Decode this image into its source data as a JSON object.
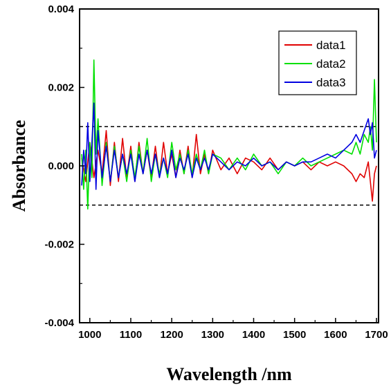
{
  "chart_data": {
    "type": "line",
    "title": "",
    "xlabel": "Wavelength /nm",
    "ylabel": "Absorbance",
    "xlim": [
      975,
      1705
    ],
    "ylim": [
      -0.004,
      0.004
    ],
    "x_ticks": [
      1000,
      1100,
      1200,
      1300,
      1400,
      1500,
      1600,
      1700
    ],
    "x_tick_labels": [
      "1000",
      "1100",
      "1200",
      "1300",
      "1400",
      "1500",
      "1600",
      "1700"
    ],
    "y_ticks": [
      -0.004,
      -0.002,
      0.0,
      0.002,
      0.004
    ],
    "y_tick_labels": [
      "-0.004",
      "-0.002",
      "0.000",
      "0.002",
      "0.004"
    ],
    "grid": false,
    "legend": "top-right",
    "reference_lines": [
      0.001,
      -0.001
    ],
    "series": [
      {
        "name": "data1",
        "color": "#e00000",
        "x": [
          980,
          990,
          1000,
          1010,
          1020,
          1030,
          1040,
          1050,
          1060,
          1070,
          1080,
          1090,
          1100,
          1110,
          1120,
          1130,
          1140,
          1150,
          1160,
          1170,
          1180,
          1190,
          1200,
          1210,
          1220,
          1230,
          1240,
          1250,
          1260,
          1270,
          1280,
          1290,
          1300,
          1320,
          1340,
          1360,
          1380,
          1400,
          1420,
          1440,
          1460,
          1480,
          1500,
          1520,
          1540,
          1560,
          1580,
          1600,
          1620,
          1640,
          1650,
          1660,
          1670,
          1680,
          1690,
          1695,
          1700
        ],
        "values": [
          0.0002,
          -0.0004,
          0.0006,
          -0.0003,
          0.0004,
          -0.0002,
          0.0009,
          -0.0005,
          0.0006,
          -0.0004,
          0.0007,
          -0.0003,
          0.0005,
          -0.0004,
          0.0006,
          -0.0002,
          0.0004,
          -0.0003,
          0.0005,
          -0.0003,
          0.0006,
          -0.0002,
          0.0003,
          -0.0003,
          0.0004,
          -0.0002,
          0.0005,
          -0.0003,
          0.0008,
          -0.0002,
          0.0003,
          -0.0002,
          0.0004,
          -0.0001,
          0.0002,
          -0.0002,
          0.0002,
          0.0001,
          -0.0001,
          0.0002,
          -0.0001,
          0.0001,
          0.0,
          0.0001,
          -0.0001,
          0.0001,
          0.0,
          0.0001,
          0.0,
          -0.0002,
          -0.0004,
          -0.0002,
          -0.0003,
          0.0001,
          -0.0009,
          -0.0002,
          0.0
        ]
      },
      {
        "name": "data2",
        "color": "#00e000",
        "x": [
          980,
          985,
          990,
          995,
          1000,
          1005,
          1010,
          1015,
          1020,
          1030,
          1040,
          1050,
          1060,
          1070,
          1080,
          1090,
          1100,
          1110,
          1120,
          1130,
          1140,
          1150,
          1160,
          1170,
          1180,
          1190,
          1200,
          1210,
          1220,
          1230,
          1240,
          1250,
          1260,
          1270,
          1280,
          1290,
          1300,
          1320,
          1340,
          1360,
          1380,
          1400,
          1420,
          1440,
          1460,
          1480,
          1500,
          1520,
          1540,
          1560,
          1580,
          1600,
          1620,
          1640,
          1650,
          1660,
          1670,
          1680,
          1685,
          1690,
          1695,
          1700
        ],
        "values": [
          0.0003,
          -0.0006,
          0.0004,
          -0.0011,
          0.0006,
          -0.0003,
          0.0027,
          0.0003,
          0.0012,
          -0.0005,
          0.0006,
          -0.0004,
          0.0005,
          -0.0003,
          0.0003,
          -0.0004,
          0.0004,
          -0.0003,
          0.0005,
          -0.0002,
          0.0007,
          -0.0004,
          0.0003,
          -0.0002,
          0.0002,
          -0.0003,
          0.0006,
          -0.0001,
          0.0003,
          -0.0002,
          0.0004,
          -0.0002,
          0.0003,
          -0.0001,
          0.0004,
          -0.0002,
          0.0003,
          0.0002,
          -0.0001,
          0.0002,
          -0.0001,
          0.0003,
          0.0,
          0.0001,
          -0.0002,
          0.0001,
          0.0,
          0.0002,
          0.0,
          0.0001,
          0.0002,
          0.0003,
          0.0004,
          0.0003,
          0.0006,
          0.0003,
          0.0008,
          0.0006,
          0.001,
          0.0004,
          0.0022,
          0.0006
        ]
      },
      {
        "name": "data3",
        "color": "#0000e0",
        "x": [
          980,
          985,
          990,
          995,
          1000,
          1005,
          1010,
          1015,
          1020,
          1030,
          1040,
          1050,
          1060,
          1070,
          1080,
          1090,
          1100,
          1110,
          1120,
          1130,
          1140,
          1150,
          1160,
          1170,
          1180,
          1190,
          1200,
          1210,
          1220,
          1230,
          1240,
          1250,
          1260,
          1270,
          1280,
          1290,
          1300,
          1320,
          1340,
          1360,
          1380,
          1400,
          1420,
          1440,
          1460,
          1480,
          1500,
          1520,
          1540,
          1560,
          1580,
          1600,
          1620,
          1640,
          1650,
          1660,
          1670,
          1680,
          1685,
          1690,
          1695,
          1700
        ],
        "values": [
          -0.0005,
          0.0004,
          -0.0002,
          0.0011,
          -0.0004,
          0.0006,
          0.0016,
          -0.0006,
          0.0009,
          -0.0003,
          0.0005,
          -0.0004,
          0.0004,
          -0.0003,
          0.0003,
          -0.0002,
          0.0003,
          -0.0004,
          0.0003,
          -0.0002,
          0.0004,
          -0.0002,
          0.0003,
          -0.0003,
          0.0002,
          -0.0002,
          0.0004,
          -0.0003,
          0.0002,
          -0.0001,
          0.0003,
          -0.0003,
          0.0002,
          -0.0001,
          0.0002,
          -0.0001,
          0.0003,
          0.0001,
          -0.0001,
          0.0001,
          0.0,
          0.0002,
          0.0,
          0.0001,
          -0.0001,
          0.0001,
          0.0,
          0.0001,
          0.0001,
          0.0002,
          0.0003,
          0.0002,
          0.0004,
          0.0006,
          0.0008,
          0.0006,
          0.0009,
          0.0012,
          0.0008,
          0.0011,
          0.0002,
          0.0004
        ]
      }
    ]
  }
}
